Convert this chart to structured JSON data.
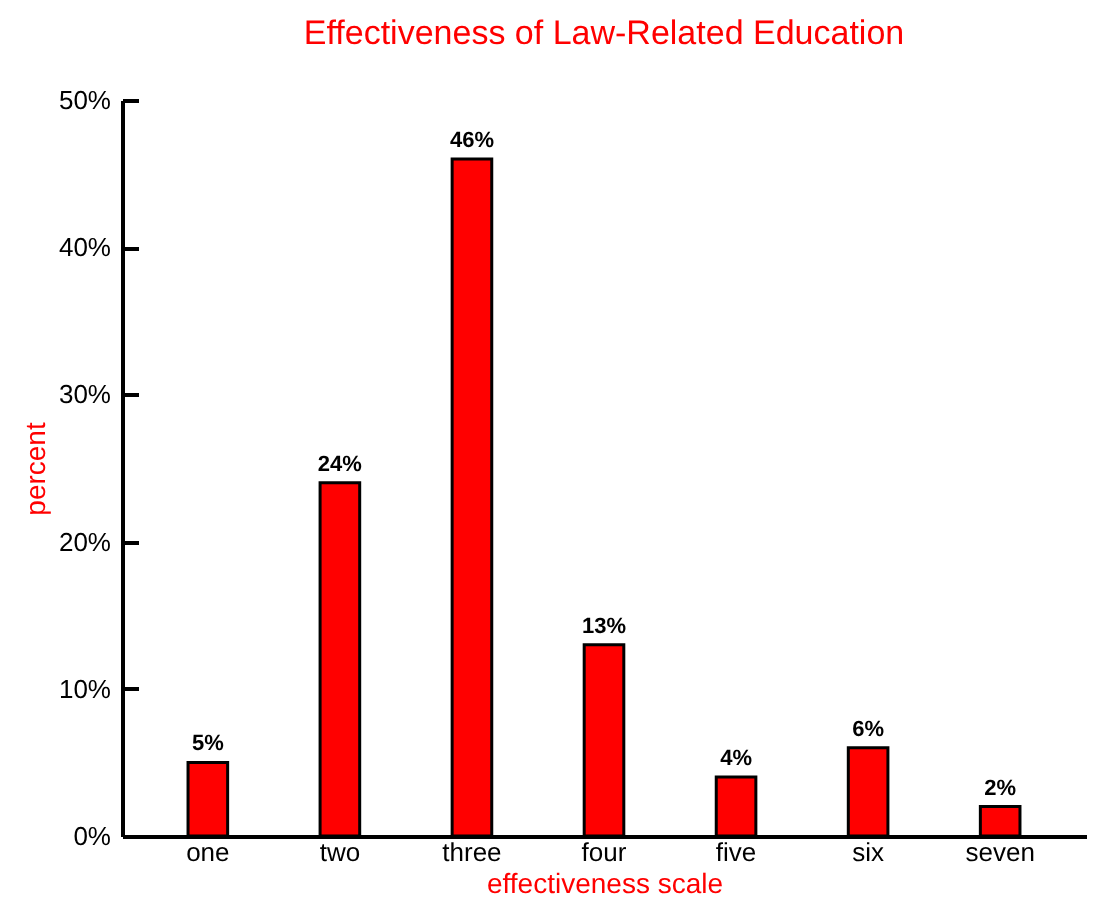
{
  "chart_data": {
    "type": "bar",
    "title": "Effectiveness of Law-Related Education",
    "xlabel": "effectiveness scale",
    "ylabel": "percent",
    "categories": [
      "one",
      "two",
      "three",
      "four",
      "five",
      "six",
      "seven"
    ],
    "values": [
      5,
      24,
      46,
      13,
      4,
      6,
      2
    ],
    "color": "#ff0000",
    "value_labels": [
      "5%",
      "24%",
      "46%",
      "13%",
      "4%",
      "6%",
      "2%"
    ],
    "ylim": [
      0,
      50
    ],
    "yticks": [
      {
        "value": 0,
        "label": "0%"
      },
      {
        "value": 10,
        "label": "10%"
      },
      {
        "value": 20,
        "label": "20%"
      },
      {
        "value": 30,
        "label": "30%"
      },
      {
        "value": 40,
        "label": "40%"
      },
      {
        "value": 50,
        "label": "50%"
      }
    ]
  }
}
